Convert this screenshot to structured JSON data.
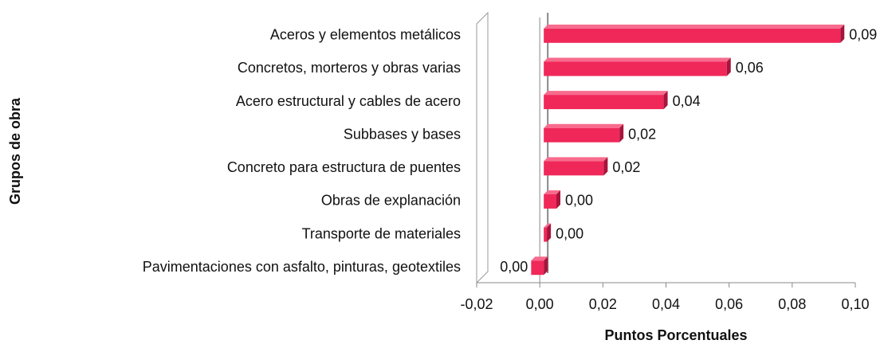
{
  "chart_data": {
    "type": "barh",
    "xlabel": "Puntos Porcentuales",
    "ylabel": "Grupos de obra",
    "categories": [
      "Aceros y elementos metálicos",
      "Concretos, morteros y obras varias",
      "Acero estructural y cables de acero",
      "Subbases y bases",
      "Concreto para estructura de puentes",
      "Obras de explanación",
      "Transporte de materiales",
      "Pavimentaciones con asfalto, pinturas, geotextiles"
    ],
    "values": [
      0.094,
      0.058,
      0.038,
      0.024,
      0.019,
      0.004,
      0.001,
      -0.004
    ],
    "value_labels": [
      "0,09",
      "0,06",
      "0,04",
      "0,02",
      "0,02",
      "0,00",
      "0,00",
      "0,00"
    ],
    "color": "#f0285a",
    "xlim": [
      -0.02,
      0.1
    ],
    "xticks": [
      {
        "value": -0.02,
        "label": "-0,02"
      },
      {
        "value": 0,
        "label": "0,00"
      },
      {
        "value": 0.02,
        "label": "0,02"
      },
      {
        "value": 0.04,
        "label": "0,04"
      },
      {
        "value": 0.06,
        "label": "0,06"
      },
      {
        "value": 0.08,
        "label": "0,08"
      },
      {
        "value": 0.1,
        "label": "0,10"
      }
    ]
  }
}
